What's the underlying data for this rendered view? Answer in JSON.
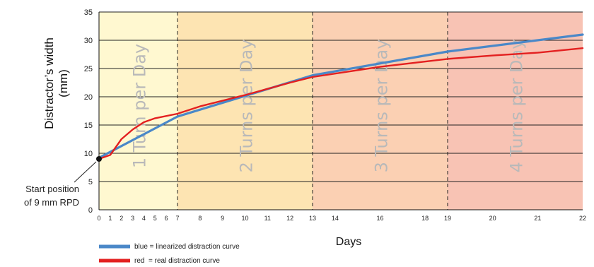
{
  "chart_data": {
    "type": "line",
    "xlabel": "Days",
    "ylabel_lines": [
      "Distractor’s width",
      "(mm)"
    ],
    "ylim": [
      0,
      35
    ],
    "yticks": [
      0,
      5,
      10,
      15,
      20,
      25,
      30,
      35
    ],
    "xticks": [
      0,
      1,
      2,
      3,
      4,
      5,
      6,
      7,
      8,
      9,
      10,
      11,
      12,
      13,
      14,
      16,
      18,
      19,
      20,
      21,
      22
    ],
    "grid": "horizontal",
    "phases": [
      {
        "label": "1 Turn per Day",
        "from": 0,
        "to": 7,
        "color": "#fff8d0"
      },
      {
        "label": "2 Turns per Day",
        "from": 7,
        "to": 13,
        "color": "#fde4b2"
      },
      {
        "label": "3 Turns per Day",
        "from": 13,
        "to": 19,
        "color": "#fbd0b3"
      },
      {
        "label": "4 Turns per Day",
        "from": 19,
        "to": 22,
        "color": "#f8c3b4"
      }
    ],
    "series": [
      {
        "name": "blue = linearized distraction curve",
        "color": "#4a88c8",
        "points": [
          [
            0,
            9.2
          ],
          [
            7,
            16.5
          ],
          [
            13,
            23.8
          ],
          [
            19,
            28.0
          ],
          [
            22,
            31.0
          ]
        ]
      },
      {
        "name": "red  = real distraction curve",
        "color": "#e32020",
        "points": [
          [
            0,
            9.0
          ],
          [
            1,
            9.7
          ],
          [
            2,
            12.5
          ],
          [
            3,
            14.2
          ],
          [
            4,
            15.5
          ],
          [
            5,
            16.2
          ],
          [
            7,
            17.0
          ],
          [
            8,
            18.3
          ],
          [
            10,
            20.3
          ],
          [
            12,
            22.5
          ],
          [
            13,
            23.5
          ],
          [
            16,
            25.3
          ],
          [
            19,
            26.7
          ],
          [
            20,
            27.3
          ],
          [
            21,
            27.8
          ],
          [
            22,
            28.6
          ]
        ]
      }
    ],
    "start_point": {
      "x": 0,
      "y": 9
    },
    "annotation_lines": [
      "Start position",
      "of 9 mm RPD"
    ]
  }
}
